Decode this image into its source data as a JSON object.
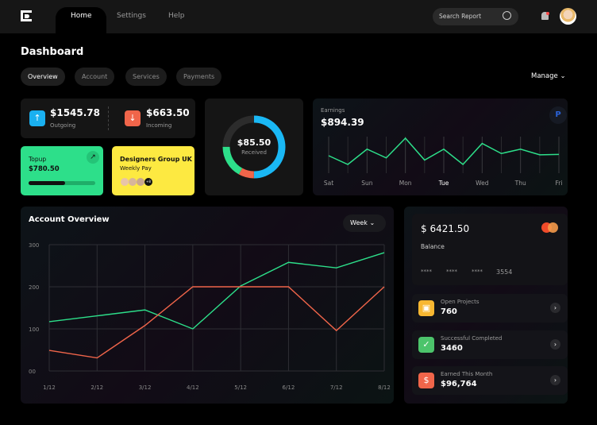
{
  "nav": {
    "tabs": [
      "Home",
      "Settings",
      "Help"
    ],
    "active": "Home",
    "search_placeholder": "Search Report"
  },
  "page_title": "Dashboard",
  "subtabs": [
    "Overview",
    "Account",
    "Services",
    "Payments"
  ],
  "manage_label": "Manage",
  "outgoing": {
    "value": "$1545.78",
    "label": "Outgoing",
    "color": "#1ab0f0"
  },
  "incoming": {
    "value": "$663.50",
    "label": "Incoming",
    "color": "#f0654a"
  },
  "topup": {
    "label": "Topup",
    "value": "$780.50",
    "progress": 0.55,
    "color": "#2ddf8a"
  },
  "group": {
    "title": "Designers Group UK",
    "subtitle": "Weekly Pay",
    "more": "+8",
    "color": "#fde941"
  },
  "donut": {
    "value": "$85.50",
    "label": "Received",
    "segments": [
      {
        "color": "#1ab8f5",
        "pct": 0.5
      },
      {
        "color": "#f0654a",
        "pct": 0.08
      },
      {
        "color": "#2ddf8a",
        "pct": 0.17
      },
      {
        "color": "#2c2c2c",
        "pct": 0.25
      }
    ]
  },
  "earnings": {
    "label": "Earnings",
    "value": "$894.39",
    "days": [
      "Sat",
      "Sun",
      "Mon",
      "Tue",
      "Wed",
      "Thu",
      "Fri"
    ],
    "active_day": "Tue",
    "line": [
      40,
      20,
      55,
      35,
      80,
      30,
      55,
      20,
      68,
      45,
      55,
      42,
      43
    ],
    "color": "#2ddf8a"
  },
  "overview": {
    "title": "Account Overview",
    "period": "Week"
  },
  "chart_data": {
    "type": "line",
    "title": "Account Overview",
    "yticks": [
      "300",
      "200",
      "100",
      "00"
    ],
    "ylim": [
      0,
      300
    ],
    "categories": [
      "1/12",
      "2/12",
      "3/12",
      "4/12",
      "5/12",
      "6/12",
      "7/12",
      "8/12"
    ],
    "series": [
      {
        "color": "#2ddf8a",
        "values": [
          117,
          131,
          145,
          100,
          202,
          258,
          245,
          281
        ]
      },
      {
        "color": "#f0654a",
        "values": [
          49,
          31,
          108,
          200,
          200,
          200,
          96,
          200
        ]
      }
    ],
    "grid": true
  },
  "balance": {
    "value": "$ 6421.50",
    "label": "Balance",
    "masked": [
      "****",
      "****",
      "****"
    ],
    "last4": "3554"
  },
  "stats": [
    {
      "label": "Open Projects",
      "value": "760",
      "icon": "briefcase-icon",
      "color": "#f8b731"
    },
    {
      "label": "Successful Completed",
      "value": "3460",
      "icon": "check-circle-icon",
      "color": "#4cc46b"
    },
    {
      "label": "Earned This Month",
      "value": "$96,764",
      "icon": "dollar-icon",
      "color": "#f0654a"
    }
  ]
}
